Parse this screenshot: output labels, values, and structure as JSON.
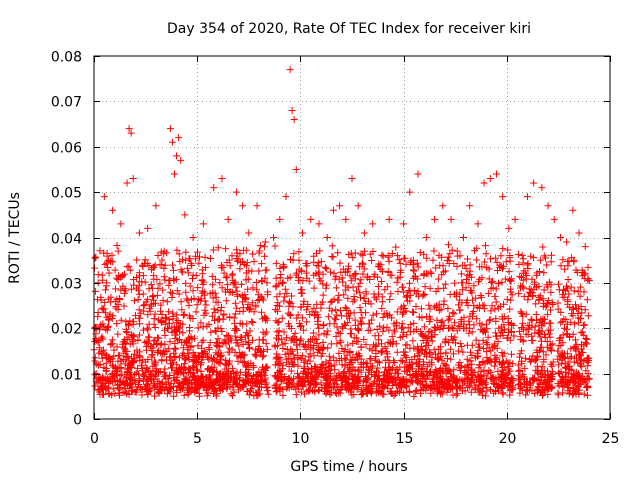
{
  "chart_data": {
    "type": "scatter",
    "title": "Day 354 of 2020, Rate Of TEC Index for receiver kiri",
    "xlabel": "GPS time / hours",
    "ylabel": "ROTI / TECUs",
    "xlim": [
      0,
      25
    ],
    "ylim": [
      0,
      0.08
    ],
    "xticks": [
      0,
      5,
      10,
      15,
      20,
      25
    ],
    "xtick_labels": [
      "0",
      "5",
      "10",
      "15",
      "20",
      "25"
    ],
    "yticks": [
      0,
      0.01,
      0.02,
      0.03,
      0.04,
      0.05,
      0.06,
      0.07,
      0.08
    ],
    "ytick_labels": [
      "0",
      "0.01",
      "0.02",
      "0.03",
      "0.04",
      "0.05",
      "0.06",
      "0.07",
      "0.08"
    ],
    "grid": true,
    "marker": "+",
    "marker_color": "#ff0000",
    "series": [
      {
        "name": "ROTI",
        "x": [
          0.2,
          0.5,
          0.9,
          1.3,
          1.6,
          1.7,
          1.8,
          1.9,
          2.2,
          2.6,
          3.0,
          3.2,
          3.4,
          3.7,
          3.8,
          3.9,
          4.0,
          4.1,
          4.2,
          4.4,
          4.8,
          5.3,
          5.8,
          6.2,
          6.5,
          6.9,
          7.2,
          7.5,
          7.9,
          8.3,
          8.7,
          9.0,
          9.3,
          9.5,
          9.6,
          9.7,
          9.8,
          10.1,
          10.5,
          10.9,
          11.3,
          11.6,
          11.9,
          12.2,
          12.5,
          12.8,
          13.1,
          13.5,
          13.9,
          14.3,
          14.7,
          15.0,
          15.3,
          15.7,
          16.1,
          16.5,
          16.9,
          17.3,
          17.6,
          17.9,
          18.2,
          18.6,
          18.9,
          19.2,
          19.5,
          19.8,
          20.1,
          20.4,
          21.0,
          21.3,
          21.7,
          22.0,
          22.3,
          22.6,
          22.9,
          23.2,
          23.5,
          23.8,
          0.3,
          1.0,
          2.0,
          3.1,
          4.5,
          5.5,
          6.6,
          7.7,
          8.8,
          9.9,
          11.0,
          12.1,
          13.2,
          14.4,
          15.5,
          16.6,
          17.7,
          18.8,
          19.9,
          21.1,
          22.2,
          23.3,
          0.7,
          2.4,
          4.3,
          6.0,
          7.4,
          9.2,
          10.7,
          12.6,
          14.9,
          16.3,
          18.4,
          20.2,
          21.8,
          23.6
        ],
        "y": [
          0.03,
          0.049,
          0.046,
          0.043,
          0.052,
          0.064,
          0.063,
          0.053,
          0.041,
          0.042,
          0.047,
          0.034,
          0.037,
          0.064,
          0.061,
          0.054,
          0.058,
          0.062,
          0.057,
          0.045,
          0.04,
          0.043,
          0.051,
          0.053,
          0.044,
          0.05,
          0.047,
          0.041,
          0.047,
          0.039,
          0.04,
          0.044,
          0.049,
          0.077,
          0.068,
          0.066,
          0.055,
          0.041,
          0.044,
          0.043,
          0.04,
          0.046,
          0.047,
          0.044,
          0.053,
          0.047,
          0.041,
          0.043,
          0.033,
          0.044,
          0.036,
          0.043,
          0.05,
          0.054,
          0.04,
          0.044,
          0.047,
          0.044,
          0.037,
          0.04,
          0.047,
          0.043,
          0.052,
          0.053,
          0.054,
          0.049,
          0.042,
          0.044,
          0.049,
          0.052,
          0.051,
          0.047,
          0.044,
          0.04,
          0.039,
          0.046,
          0.041,
          0.038,
          0.012,
          0.01,
          0.008,
          0.006,
          0.009,
          0.011,
          0.009,
          0.008,
          0.007,
          0.009,
          0.008,
          0.01,
          0.007,
          0.006,
          0.005,
          0.008,
          0.007,
          0.006,
          0.009,
          0.008,
          0.007,
          0.008,
          0.022,
          0.025,
          0.019,
          0.024,
          0.021,
          0.026,
          0.023,
          0.027,
          0.02,
          0.022,
          0.025,
          0.028,
          0.021,
          0.019
        ]
      }
    ]
  }
}
